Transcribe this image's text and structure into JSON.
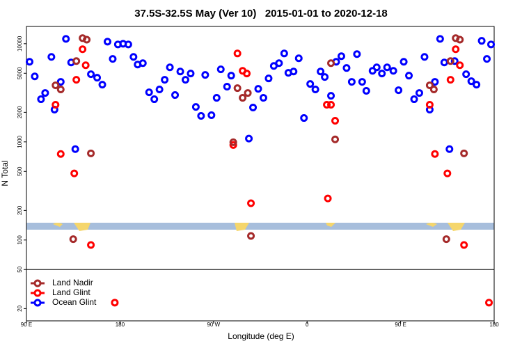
{
  "chart_data": {
    "type": "scatter",
    "title": "37.5S-32.5S May (Ver 10)   2015-01-01 to 2020-12-18",
    "x_label": "Longitude (deg E)",
    "y_label": "N Total",
    "log_y": true,
    "legend": "bottom-left",
    "hline": 50,
    "xlim": [
      90,
      540
    ],
    "ylim": [
      15,
      15000
    ],
    "xticks": [
      {
        "value": 90,
        "label": "90 E"
      },
      {
        "value": 180,
        "label": "180"
      },
      {
        "value": 270,
        "label": "90 W"
      },
      {
        "value": 360,
        "label": "0"
      },
      {
        "value": 450,
        "label": "90 E"
      },
      {
        "value": 540,
        "label": "180"
      }
    ],
    "yticks": [
      20,
      50,
      100,
      200,
      500,
      1000,
      2000,
      5000,
      10000
    ],
    "series": [
      {
        "name": "Land Nadir",
        "color": "#a52a2a",
        "x": [
          118,
          123,
          135,
          138,
          144,
          148,
          152,
          289,
          293,
          298,
          303,
          306,
          383,
          387,
          478,
          482,
          494,
          498,
          503,
          507,
          511
        ],
        "values": [
          3770,
          3420,
          102,
          6660,
          11400,
          11000,
          764,
          991,
          3530,
          2810,
          3150,
          110,
          6340,
          1060,
          3770,
          3420,
          102,
          6660,
          11400,
          11000,
          764
        ]
      },
      {
        "name": "Land Glint",
        "color": "#ff0000",
        "x": [
          118,
          123,
          136,
          138,
          144,
          147,
          152,
          175,
          289,
          293,
          298,
          302,
          306,
          379,
          380,
          383,
          387,
          478,
          483,
          495,
          498,
          503,
          507,
          511,
          535
        ],
        "values": [
          2390,
          752,
          477,
          4290,
          8780,
          6040,
          89,
          23,
          929,
          7960,
          5300,
          4970,
          237,
          2390,
          265,
          2390,
          1640,
          2390,
          752,
          477,
          4290,
          8780,
          6040,
          89,
          23
        ]
      },
      {
        "name": "Ocean Glint",
        "color": "#0000ff",
        "x": [
          93,
          98,
          104,
          108,
          114,
          117,
          123,
          128,
          133,
          137,
          152,
          158,
          163,
          168,
          173,
          178,
          183,
          188,
          193,
          197,
          202,
          208,
          213,
          218,
          223,
          228,
          233,
          238,
          243,
          248,
          253,
          258,
          262,
          268,
          273,
          277,
          283,
          287,
          304,
          308,
          313,
          318,
          323,
          328,
          333,
          338,
          342,
          347,
          352,
          357,
          363,
          368,
          373,
          377,
          383,
          388,
          393,
          398,
          403,
          408,
          413,
          417,
          423,
          427,
          432,
          437,
          443,
          448,
          453,
          458,
          463,
          468,
          473,
          478,
          483,
          488,
          492,
          497,
          502,
          513,
          518,
          523,
          528,
          533,
          537
        ],
        "values": [
          6550,
          4650,
          2720,
          3150,
          7340,
          2130,
          4090,
          11200,
          6440,
          843,
          4890,
          4510,
          3830,
          10500,
          7000,
          9840,
          10000,
          9840,
          7340,
          6140,
          6340,
          3200,
          2720,
          3420,
          4290,
          5750,
          3000,
          5210,
          4290,
          4970,
          2270,
          1840,
          4810,
          1870,
          2810,
          5480,
          3650,
          4730,
          1080,
          2240,
          3470,
          2810,
          4430,
          5940,
          6340,
          7960,
          5050,
          5210,
          7110,
          1750,
          3890,
          3420,
          5210,
          4580,
          2950,
          6550,
          7460,
          5660,
          4090,
          7840,
          4090,
          3310,
          5300,
          5750,
          4970,
          5750,
          5300,
          3360,
          6550,
          4730,
          2720,
          3150,
          7340,
          2130,
          4090,
          11200,
          6440,
          843,
          6660,
          4890,
          4150,
          3830,
          10700,
          7000,
          9840
        ]
      }
    ]
  }
}
